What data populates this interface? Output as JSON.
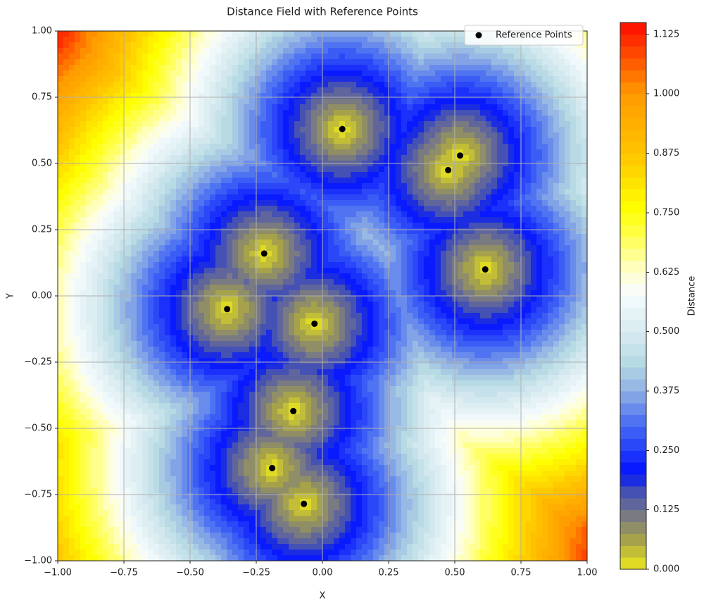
{
  "chart_data": {
    "type": "scatter",
    "title": "Distance Field with Reference Points",
    "xlabel": "X",
    "ylabel": "Y",
    "series": [
      {
        "name": "Reference Points",
        "color": "#000000",
        "x": [
          0.075,
          0.52,
          0.475,
          -0.22,
          0.615,
          -0.36,
          -0.03,
          -0.11,
          -0.19,
          -0.07
        ],
        "y": [
          0.63,
          0.53,
          0.475,
          0.16,
          0.1,
          -0.05,
          -0.105,
          -0.435,
          -0.65,
          -0.785
        ]
      }
    ],
    "xlim": [
      -1,
      1
    ],
    "ylim": [
      -1,
      1
    ],
    "xticks": [
      {
        "value": -1,
        "label": "−1.00"
      },
      {
        "value": -0.75,
        "label": "−0.75"
      },
      {
        "value": -0.5,
        "label": "−0.50"
      },
      {
        "value": -0.25,
        "label": "−0.25"
      },
      {
        "value": 0,
        "label": "0.00"
      },
      {
        "value": 0.25,
        "label": "0.25"
      },
      {
        "value": 0.5,
        "label": "0.50"
      },
      {
        "value": 0.75,
        "label": "0.75"
      },
      {
        "value": 1,
        "label": "1.00"
      }
    ],
    "yticks": [
      {
        "value": -1,
        "label": "−1.00"
      },
      {
        "value": -0.75,
        "label": "−0.75"
      },
      {
        "value": -0.5,
        "label": "−0.50"
      },
      {
        "value": -0.25,
        "label": "−0.25"
      },
      {
        "value": 0,
        "label": "0.00"
      },
      {
        "value": 0.25,
        "label": "0.25"
      },
      {
        "value": 0.5,
        "label": "0.50"
      },
      {
        "value": 0.75,
        "label": "0.75"
      },
      {
        "value": 1,
        "label": "1.00"
      }
    ],
    "grid": true,
    "legend": "upper right",
    "colorbar": {
      "label": "Distance",
      "lim": [
        0,
        1.15
      ],
      "level_step": 0.025,
      "ticks": [
        {
          "value": 0,
          "label": "0.000"
        },
        {
          "value": 0.125,
          "label": "0.125"
        },
        {
          "value": 0.25,
          "label": "0.250"
        },
        {
          "value": 0.375,
          "label": "0.375"
        },
        {
          "value": 0.5,
          "label": "0.500"
        },
        {
          "value": 0.625,
          "label": "0.625"
        },
        {
          "value": 0.75,
          "label": "0.750"
        },
        {
          "value": 0.875,
          "label": "0.875"
        },
        {
          "value": 1,
          "label": "1.000"
        },
        {
          "value": 1.125,
          "label": "1.125"
        }
      ],
      "colormap": [
        {
          "value": 0,
          "color": "#eeea1c"
        },
        {
          "value": 0.06,
          "color": "#a8a448"
        },
        {
          "value": 0.125,
          "color": "#6e7090"
        },
        {
          "value": 0.175,
          "color": "#3848c0"
        },
        {
          "value": 0.2,
          "color": "#0010ff"
        },
        {
          "value": 0.3,
          "color": "#4468f4"
        },
        {
          "value": 0.375,
          "color": "#8eb0e4"
        },
        {
          "value": 0.43,
          "color": "#b4d8e2"
        },
        {
          "value": 0.5,
          "color": "#d8ecf0"
        },
        {
          "value": 0.58,
          "color": "#f6fbfd"
        },
        {
          "value": 0.625,
          "color": "#ffffd0"
        },
        {
          "value": 0.7,
          "color": "#ffff50"
        },
        {
          "value": 0.76,
          "color": "#ffff00"
        },
        {
          "value": 0.875,
          "color": "#ffc400"
        },
        {
          "value": 1.0,
          "color": "#ff9a00"
        },
        {
          "value": 1.15,
          "color": "#ff0a00"
        }
      ]
    }
  }
}
